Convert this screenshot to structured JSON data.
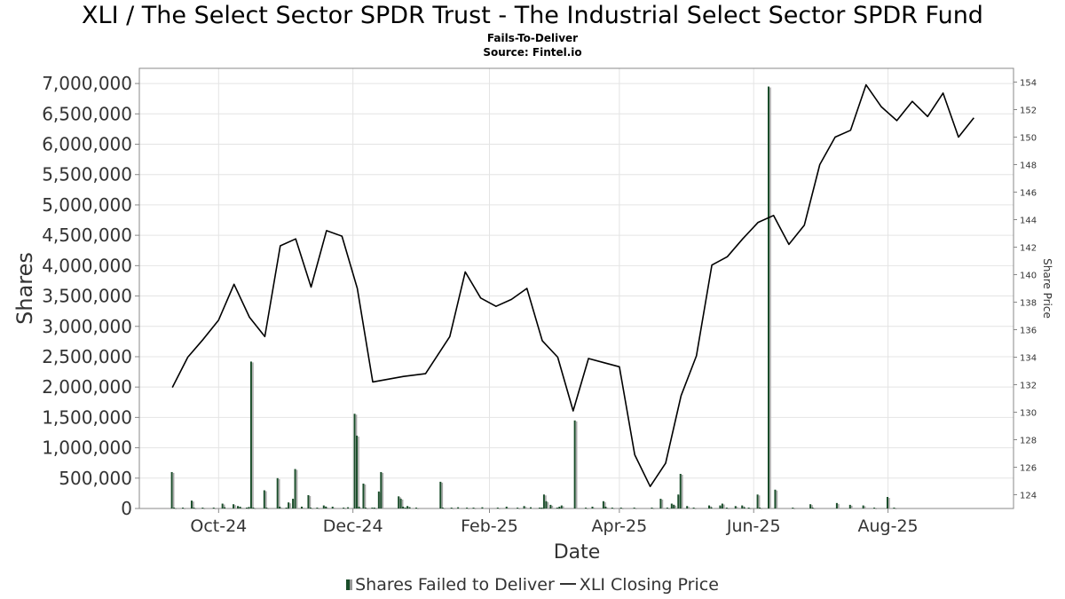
{
  "chart_data": {
    "type": "bar",
    "title": "XLI / The Select Sector SPDR Trust - The Industrial Select Sector SPDR Fund",
    "subtitle": "Fails-To-Deliver",
    "source": "Source: Fintel.io",
    "xlabel": "Date",
    "ylabel": "Shares",
    "y2label": "Share Price",
    "ylim": [
      0,
      7250000
    ],
    "y2lim": [
      123,
      155
    ],
    "xlim": [
      "2024-08-26",
      "2025-09-27"
    ],
    "grid": true,
    "legend_position": "bottom",
    "x_tick_labels": [
      "Oct-24",
      "Dec-24",
      "Feb-25",
      "Apr-25",
      "Jun-25",
      "Aug-25"
    ],
    "x_ticks": [
      "2024-10-01",
      "2024-12-01",
      "2025-02-01",
      "2025-04-01",
      "2025-06-01",
      "2025-08-01"
    ],
    "y_tick_labels": [
      "0",
      "500,000",
      "1,000,000",
      "1,500,000",
      "2,000,000",
      "2,500,000",
      "3,000,000",
      "3,500,000",
      "4,000,000",
      "4,500,000",
      "5,000,000",
      "5,500,000",
      "6,000,000",
      "6,500,000",
      "7,000,000"
    ],
    "y_ticks": [
      0,
      500000,
      1000000,
      1500000,
      2000000,
      2500000,
      3000000,
      3500000,
      4000000,
      4500000,
      5000000,
      5500000,
      6000000,
      6500000,
      7000000
    ],
    "y2_tick_labels": [
      "124",
      "126",
      "128",
      "130",
      "132",
      "134",
      "136",
      "138",
      "140",
      "142",
      "144",
      "146",
      "148",
      "150",
      "152",
      "154"
    ],
    "y2_ticks": [
      124,
      126,
      128,
      130,
      132,
      134,
      136,
      138,
      140,
      142,
      144,
      146,
      148,
      150,
      152,
      154
    ],
    "series": [
      {
        "name": "Shares Failed to Deliver",
        "kind": "bar",
        "color": "#1a4d2a",
        "x": [
          "2024-09-10",
          "2024-09-11",
          "2024-09-15",
          "2024-09-19",
          "2024-09-20",
          "2024-09-24",
          "2024-09-29",
          "2024-10-03",
          "2024-10-04",
          "2024-10-08",
          "2024-10-10",
          "2024-10-11",
          "2024-10-14",
          "2024-10-15",
          "2024-10-16",
          "2024-10-17",
          "2024-10-22",
          "2024-10-23",
          "2024-10-28",
          "2024-10-29",
          "2024-11-01",
          "2024-11-02",
          "2024-11-04",
          "2024-11-05",
          "2024-11-08",
          "2024-11-11",
          "2024-11-12",
          "2024-11-15",
          "2024-11-18",
          "2024-11-19",
          "2024-11-22",
          "2024-11-27",
          "2024-11-29",
          "2024-12-02",
          "2024-12-03",
          "2024-12-04",
          "2024-12-06",
          "2024-12-07",
          "2024-12-10",
          "2024-12-11",
          "2024-12-13",
          "2024-12-14",
          "2024-12-22",
          "2024-12-23",
          "2024-12-24",
          "2024-12-25",
          "2024-12-26",
          "2024-12-27",
          "2024-12-30",
          "2025-01-10",
          "2025-01-11",
          "2025-01-15",
          "2025-01-18",
          "2025-01-22",
          "2025-01-25",
          "2025-01-29",
          "2025-02-05",
          "2025-02-09",
          "2025-02-14",
          "2025-02-17",
          "2025-02-20",
          "2025-02-24",
          "2025-02-25",
          "2025-02-26",
          "2025-02-27",
          "2025-03-01",
          "2025-03-04",
          "2025-03-05",
          "2025-03-06",
          "2025-03-12",
          "2025-03-17",
          "2025-03-20",
          "2025-03-25",
          "2025-03-26",
          "2025-03-29",
          "2025-04-02",
          "2025-04-08",
          "2025-04-16",
          "2025-04-20",
          "2025-04-23",
          "2025-04-25",
          "2025-04-26",
          "2025-04-28",
          "2025-04-29",
          "2025-05-02",
          "2025-05-05",
          "2025-05-12",
          "2025-05-13",
          "2025-05-17",
          "2025-05-18",
          "2025-05-20",
          "2025-05-24",
          "2025-05-27",
          "2025-05-28",
          "2025-05-30",
          "2025-06-03",
          "2025-06-04",
          "2025-06-08",
          "2025-06-11",
          "2025-06-19",
          "2025-06-27",
          "2025-06-28",
          "2025-07-09",
          "2025-07-15",
          "2025-07-21",
          "2025-07-26",
          "2025-08-01",
          "2025-08-04"
        ],
        "values": [
          600000,
          10000,
          5000,
          130000,
          10000,
          5000,
          10000,
          80000,
          20000,
          70000,
          40000,
          30000,
          10000,
          25000,
          2420000,
          15000,
          300000,
          10000,
          500000,
          30000,
          10000,
          100000,
          160000,
          650000,
          30000,
          220000,
          10000,
          10000,
          50000,
          30000,
          30000,
          10000,
          20000,
          1560000,
          1200000,
          30000,
          410000,
          10000,
          15000,
          10000,
          280000,
          600000,
          200000,
          160000,
          30000,
          10000,
          40000,
          20000,
          10000,
          440000,
          10000,
          10000,
          20000,
          10000,
          10000,
          20000,
          15000,
          30000,
          10000,
          40000,
          20000,
          10000,
          10000,
          230000,
          120000,
          60000,
          15000,
          30000,
          50000,
          1450000,
          10000,
          30000,
          120000,
          30000,
          10000,
          10000,
          15000,
          10000,
          160000,
          15000,
          80000,
          60000,
          230000,
          570000,
          40000,
          15000,
          50000,
          20000,
          50000,
          80000,
          10000,
          40000,
          50000,
          20000,
          10000,
          230000,
          10000,
          6950000,
          310000,
          10000,
          70000,
          10000,
          90000,
          60000,
          50000,
          10000,
          190000,
          10000
        ]
      },
      {
        "name": "XLI Closing Price",
        "kind": "line",
        "color": "#000000",
        "x": [
          "2024-09-10",
          "2024-09-17",
          "2024-09-24",
          "2024-10-01",
          "2024-10-08",
          "2024-10-15",
          "2024-10-22",
          "2024-10-29",
          "2024-11-05",
          "2024-11-12",
          "2024-11-19",
          "2024-11-26",
          "2024-12-03",
          "2024-12-10",
          "2024-12-17",
          "2024-12-24",
          "2025-01-03",
          "2025-01-14",
          "2025-01-21",
          "2025-01-28",
          "2025-02-04",
          "2025-02-11",
          "2025-02-18",
          "2025-02-25",
          "2025-03-04",
          "2025-03-11",
          "2025-03-18",
          "2025-03-25",
          "2025-04-01",
          "2025-04-08",
          "2025-04-15",
          "2025-04-22",
          "2025-04-29",
          "2025-05-06",
          "2025-05-13",
          "2025-05-20",
          "2025-05-27",
          "2025-06-03",
          "2025-06-10",
          "2025-06-17",
          "2025-06-24",
          "2025-07-01",
          "2025-07-08",
          "2025-07-15",
          "2025-07-22",
          "2025-07-29",
          "2025-08-05",
          "2025-08-12",
          "2025-08-19",
          "2025-08-26",
          "2025-09-02",
          "2025-09-09"
        ],
        "values": [
          131.8,
          134.0,
          135.3,
          136.7,
          139.3,
          136.9,
          135.5,
          142.1,
          142.6,
          139.1,
          143.2,
          142.8,
          139.0,
          132.2,
          132.4,
          132.6,
          132.8,
          135.5,
          140.2,
          138.3,
          137.7,
          138.2,
          139.0,
          135.2,
          134.0,
          130.1,
          133.9,
          133.6,
          133.3,
          126.9,
          124.6,
          126.3,
          131.2,
          134.1,
          140.7,
          141.3,
          142.6,
          143.8,
          144.3,
          142.2,
          143.6,
          148.0,
          150.0,
          150.5,
          153.8,
          152.2,
          151.2,
          152.6,
          151.5,
          153.2,
          150.0,
          151.4
        ]
      }
    ]
  }
}
